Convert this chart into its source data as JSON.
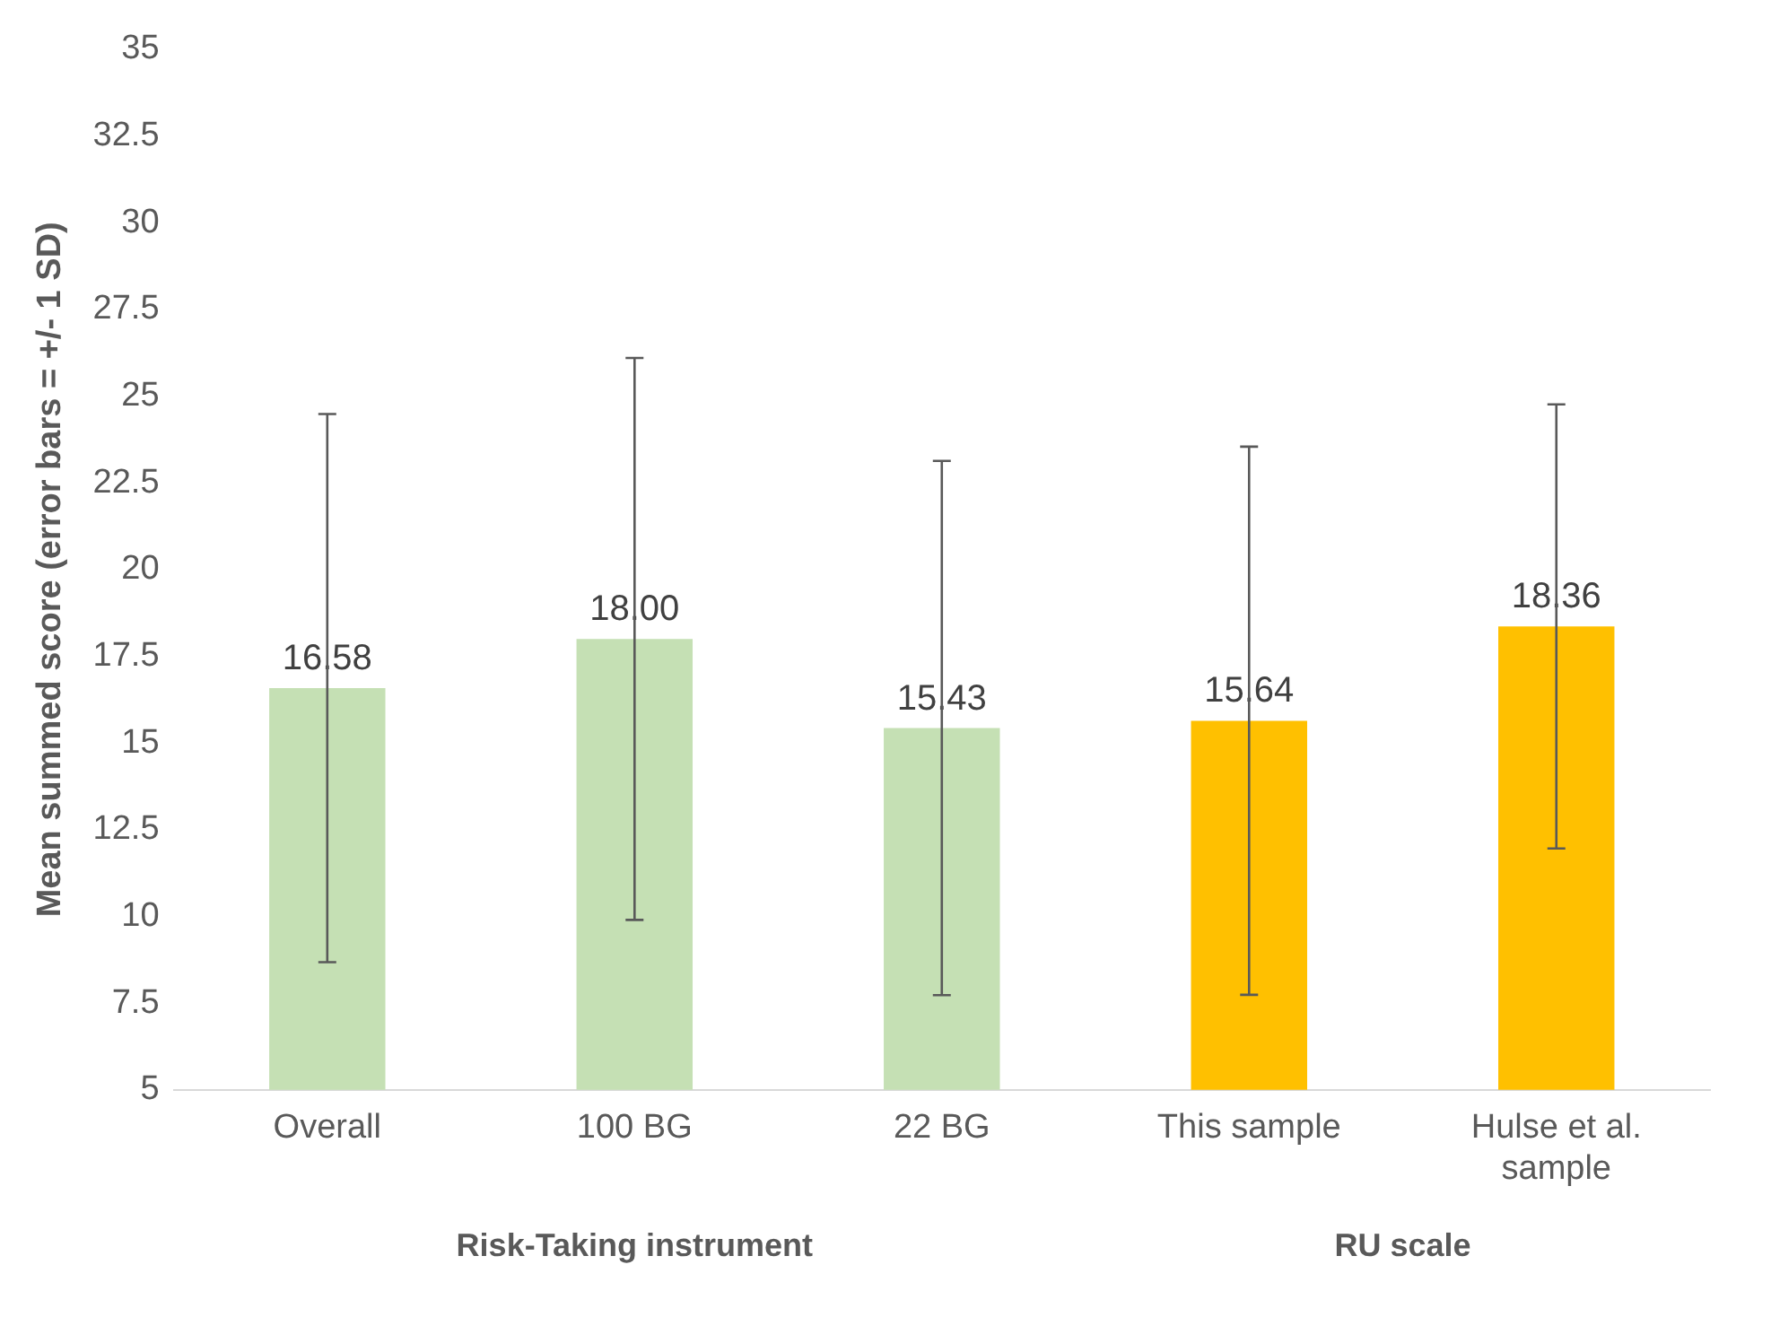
{
  "chart_data": {
    "type": "bar",
    "ylabel": "Mean summed score (error bars = +/- 1 SD)",
    "categories": [
      "Overall",
      "100 BG",
      "22 BG",
      "This sample",
      "Hulse et al. sample"
    ],
    "values": [
      16.58,
      18.0,
      15.43,
      15.64,
      18.36
    ],
    "colors": [
      "#c5e0b4",
      "#c5e0b4",
      "#c5e0b4",
      "#ffc000",
      "#ffc000"
    ],
    "errors": [
      7.9,
      8.1,
      7.7,
      7.9,
      6.4
    ],
    "value_labels": [
      "16.58",
      "18.00",
      "15.43",
      "15.64",
      "18.36"
    ],
    "annotations": [
      "Risk-Taking instrument",
      "RU scale"
    ],
    "ylim": [
      5,
      35
    ],
    "yticks": [
      5,
      7.5,
      10,
      12.5,
      15,
      17.5,
      20,
      22.5,
      25,
      27.5,
      30,
      32.5,
      35
    ],
    "grid": false,
    "legend": false
  }
}
